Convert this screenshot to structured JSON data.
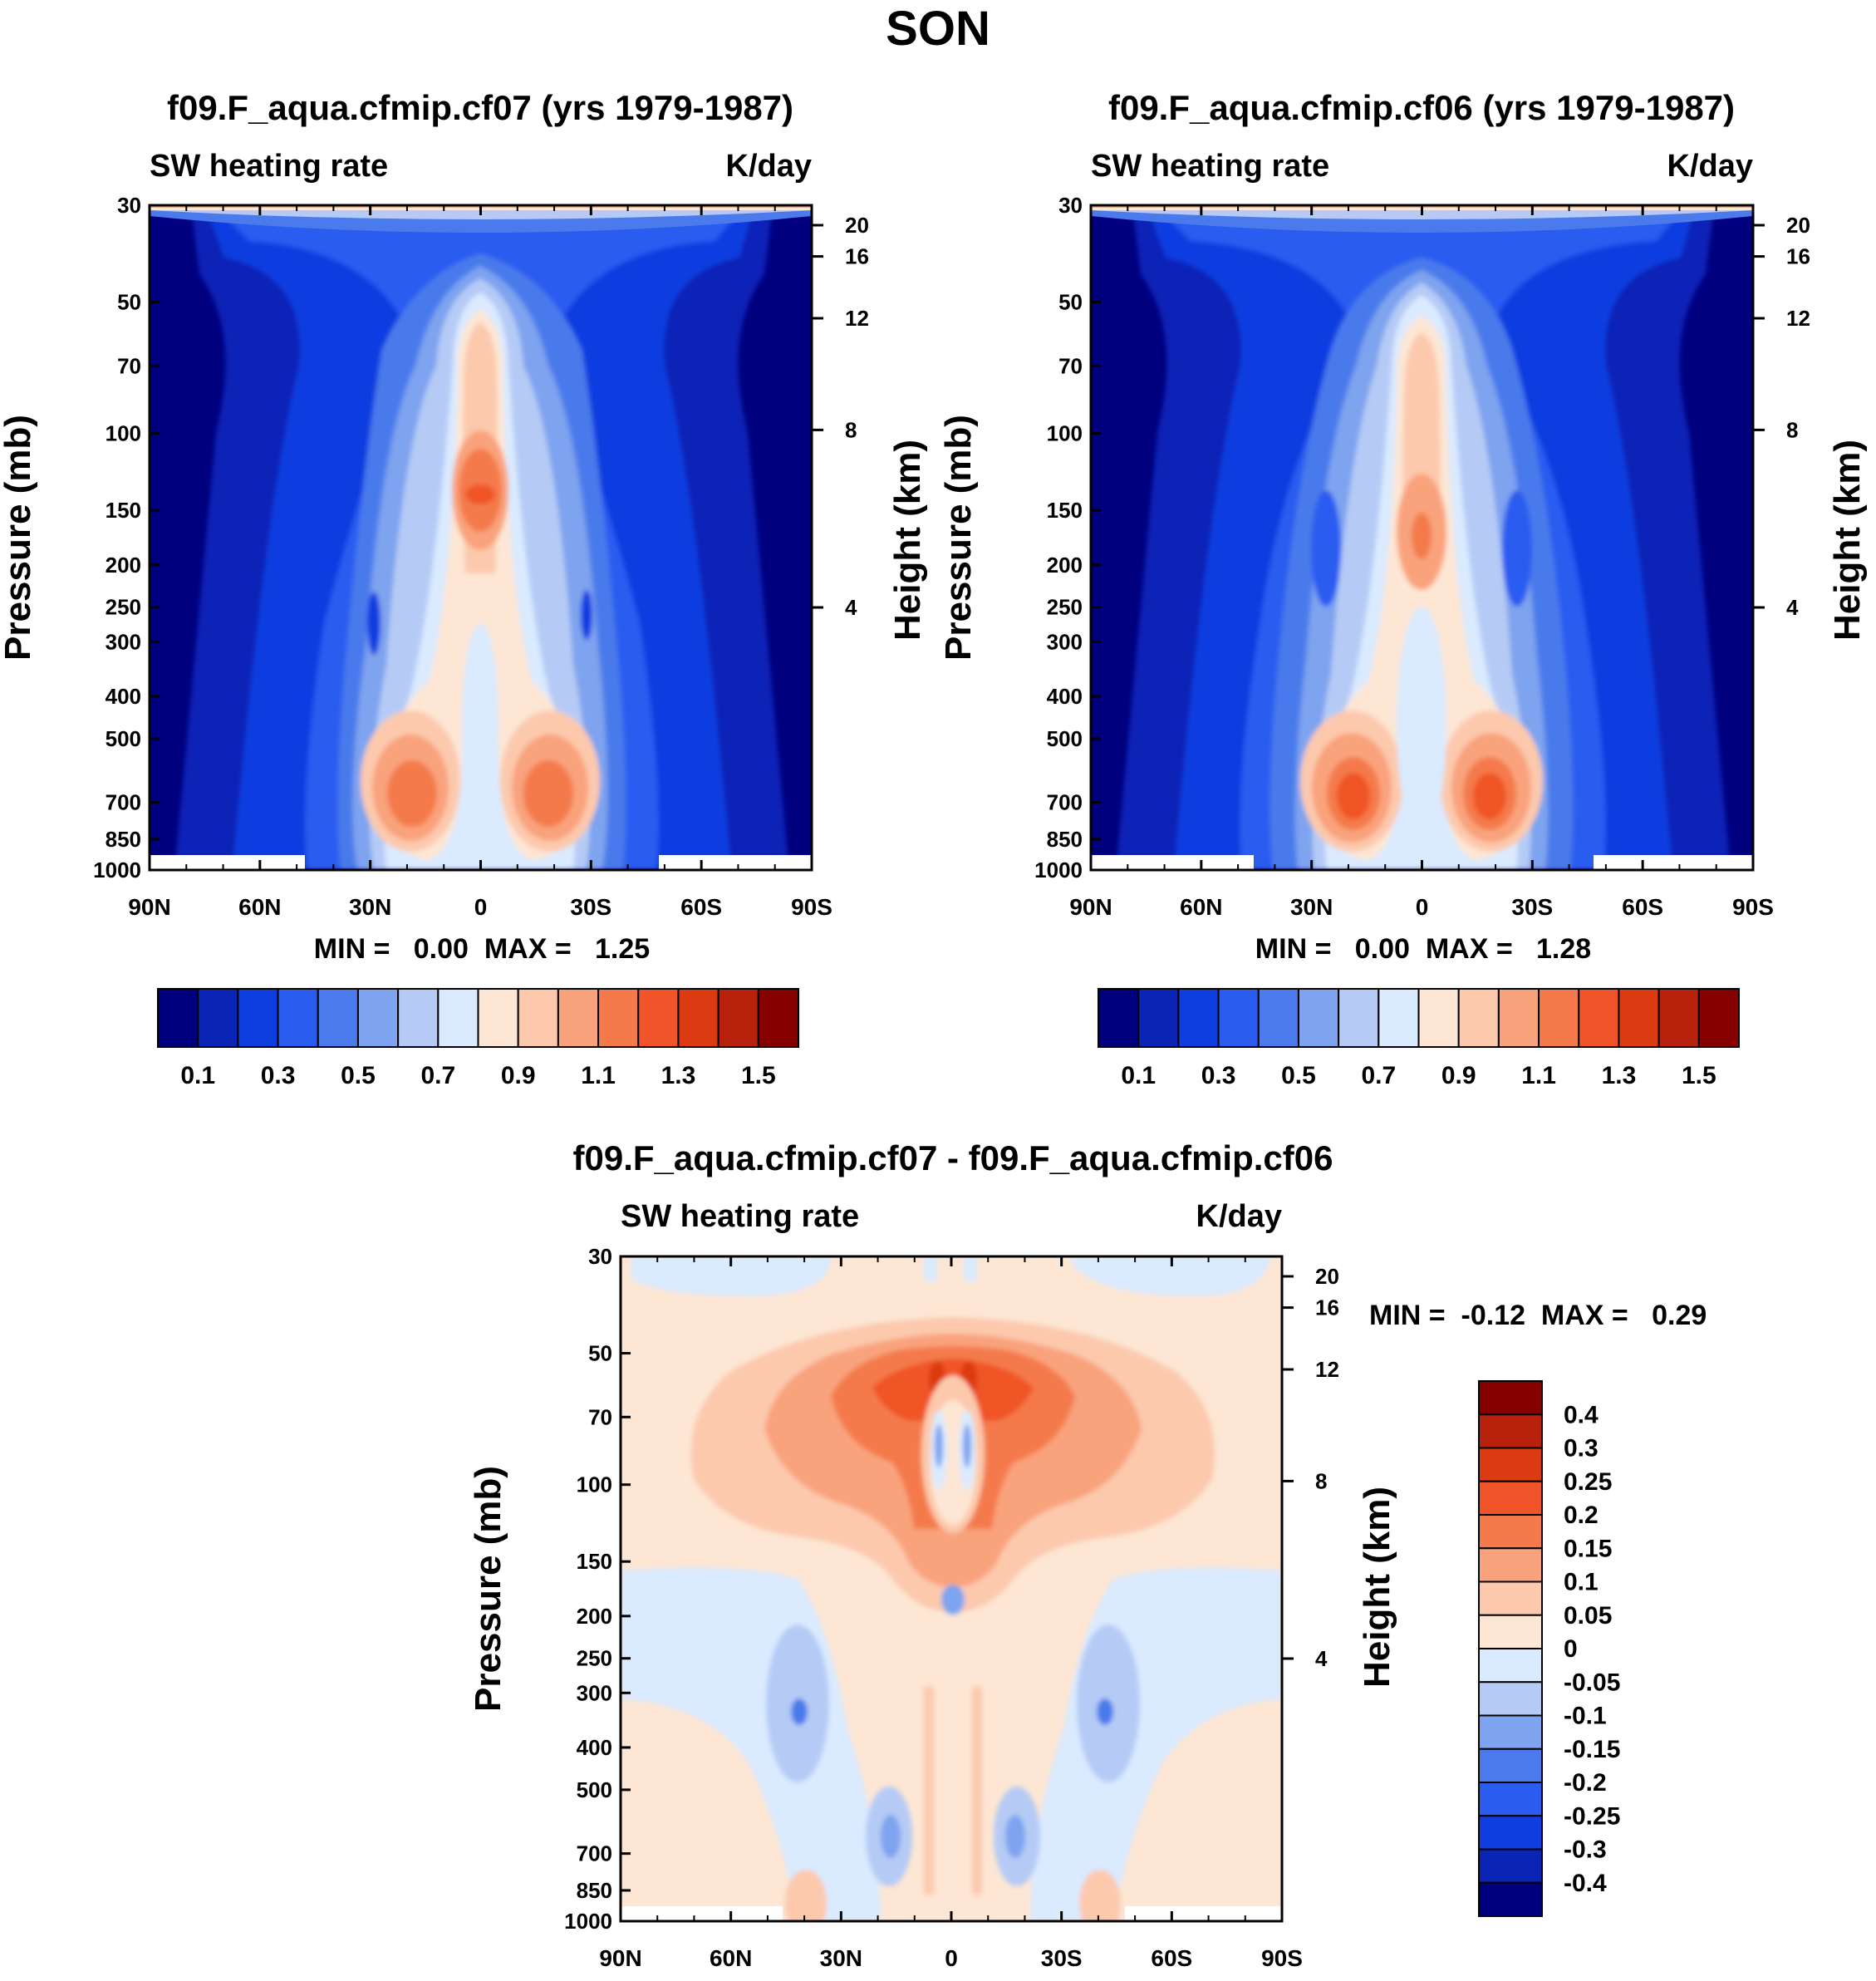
{
  "page_title": "SON",
  "chart_data": [
    {
      "type": "heatmap",
      "title": "f09.F_aqua.cfmip.cf07 (yrs 1979-1987)",
      "left_label": "SW heating rate",
      "right_label": "K/day",
      "ylabel": "Pressure (mb)",
      "ylabel_right": "Height (km)",
      "x_ticks": [
        "90N",
        "60N",
        "30N",
        "0",
        "30S",
        "60S",
        "90S"
      ],
      "y_ticks": [
        "30",
        "50",
        "70",
        "100",
        "150",
        "200",
        "250",
        "300",
        "400",
        "500",
        "700",
        "850",
        "1000"
      ],
      "y_values": [
        30,
        50,
        70,
        100,
        150,
        200,
        250,
        300,
        400,
        500,
        700,
        850,
        1000
      ],
      "height_ticks": [
        "20",
        "16",
        "12",
        "8",
        "4"
      ],
      "height_values": [
        20,
        16,
        12,
        8,
        4
      ],
      "ylim": [
        1000,
        30
      ],
      "minmax": "MIN =   0.00  MAX =   1.25",
      "colorbar_labels": [
        "0.1",
        "0.3",
        "0.5",
        "0.7",
        "0.9",
        "1.1",
        "1.3",
        "1.5"
      ],
      "min": 0.0,
      "max": 1.25
    },
    {
      "type": "heatmap",
      "title": "f09.F_aqua.cfmip.cf06 (yrs 1979-1987)",
      "left_label": "SW heating rate",
      "right_label": "K/day",
      "ylabel": "Pressure (mb)",
      "ylabel_right": "Height (km)",
      "x_ticks": [
        "90N",
        "60N",
        "30N",
        "0",
        "30S",
        "60S",
        "90S"
      ],
      "y_ticks": [
        "30",
        "50",
        "70",
        "100",
        "150",
        "200",
        "250",
        "300",
        "400",
        "500",
        "700",
        "850",
        "1000"
      ],
      "y_values": [
        30,
        50,
        70,
        100,
        150,
        200,
        250,
        300,
        400,
        500,
        700,
        850,
        1000
      ],
      "height_ticks": [
        "20",
        "16",
        "12",
        "8",
        "4"
      ],
      "height_values": [
        20,
        16,
        12,
        8,
        4
      ],
      "ylim": [
        1000,
        30
      ],
      "minmax": "MIN =   0.00  MAX =   1.28",
      "colorbar_labels": [
        "0.1",
        "0.3",
        "0.5",
        "0.7",
        "0.9",
        "1.1",
        "1.3",
        "1.5"
      ],
      "min": 0.0,
      "max": 1.28
    },
    {
      "type": "heatmap",
      "title": "f09.F_aqua.cfmip.cf07 - f09.F_aqua.cfmip.cf06",
      "left_label": "SW heating rate",
      "right_label": "K/day",
      "ylabel": "Pressure (mb)",
      "ylabel_right": "Height (km)",
      "x_ticks": [
        "90N",
        "60N",
        "30N",
        "0",
        "30S",
        "60S",
        "90S"
      ],
      "y_ticks": [
        "30",
        "50",
        "70",
        "100",
        "150",
        "200",
        "250",
        "300",
        "400",
        "500",
        "700",
        "850",
        "1000"
      ],
      "y_values": [
        30,
        50,
        70,
        100,
        150,
        200,
        250,
        300,
        400,
        500,
        700,
        850,
        1000
      ],
      "height_ticks": [
        "20",
        "16",
        "12",
        "8",
        "4"
      ],
      "height_values": [
        20,
        16,
        12,
        8,
        4
      ],
      "ylim": [
        1000,
        30
      ],
      "minmax": "MIN =  -0.12  MAX =   0.29",
      "colorbar_labels": [
        "0.4",
        "0.3",
        "0.25",
        "0.2",
        "0.15",
        "0.1",
        "0.05",
        "0",
        "-0.05",
        "-0.1",
        "-0.15",
        "-0.2",
        "-0.25",
        "-0.3",
        "-0.4"
      ],
      "min": -0.12,
      "max": 0.29
    }
  ],
  "palettes": {
    "sequential": [
      "#00007f",
      "#0a24b6",
      "#0f3ee0",
      "#2a5cf0",
      "#4a7aeb",
      "#7ea3ef",
      "#b5cbf5",
      "#daeaff",
      "#fde6d4",
      "#fcc9ad",
      "#f9a37d",
      "#f47a4c",
      "#f05428",
      "#dc3a10",
      "#b8220c",
      "#860000"
    ],
    "diff": [
      "#00007f",
      "#0a24b6",
      "#0f3ee0",
      "#2a5cf0",
      "#4a7aeb",
      "#7ea3ef",
      "#b5cbf5",
      "#daeaff",
      "#fde6d4",
      "#fcc9ad",
      "#f9a37d",
      "#f47a4c",
      "#f05428",
      "#dc3a10",
      "#b8220c",
      "#860000"
    ]
  }
}
